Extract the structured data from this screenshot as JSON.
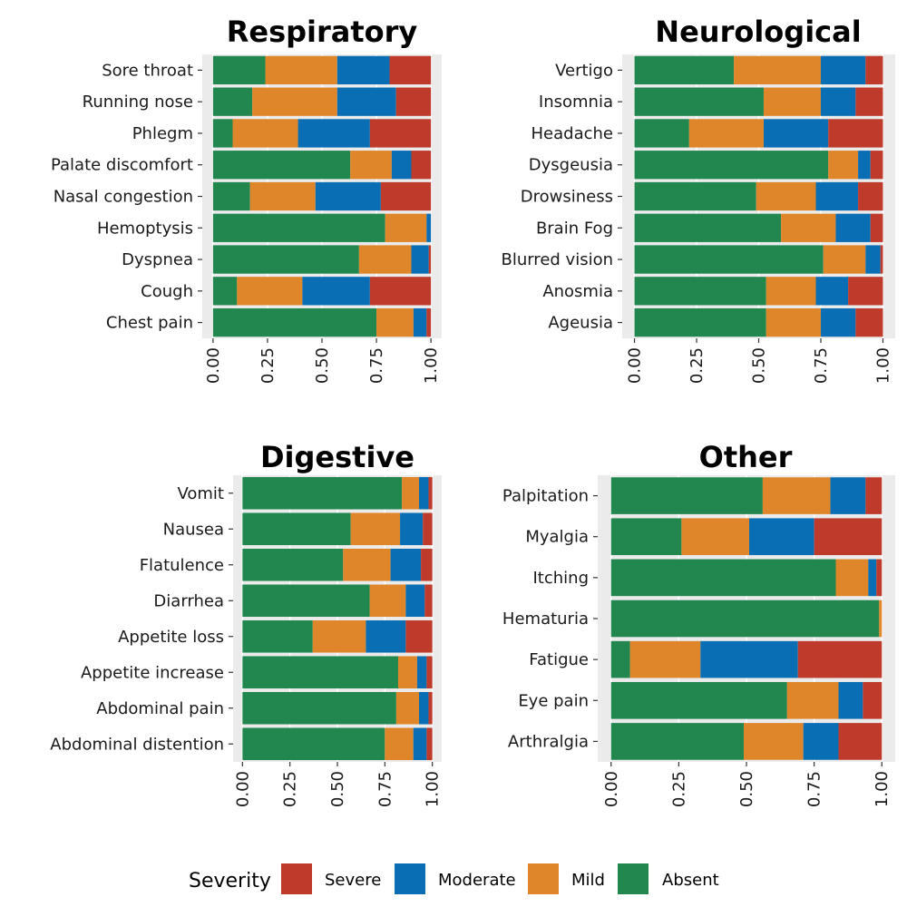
{
  "colors": {
    "Severe": "#BE3B2C",
    "Moderate": "#0A6EB4",
    "Mild": "#E0862A",
    "Absent": "#21874F",
    "panel_bg": "#EBEBEB"
  },
  "legend": {
    "title": "Severity",
    "entries": [
      "Severe",
      "Moderate",
      "Mild",
      "Absent"
    ]
  },
  "chart_data": [
    {
      "type": "bar",
      "orientation": "horizontal",
      "stacked": true,
      "title": "Respiratory",
      "xlim": [
        0,
        1
      ],
      "xticks": [
        "0.00",
        "0.25",
        "0.50",
        "0.75",
        "1.00"
      ],
      "categories": [
        "Sore throat",
        "Running nose",
        "Phlegm",
        "Palate discomfort",
        "Nasal congestion",
        "Hemoptysis",
        "Dyspnea",
        "Cough",
        "Chest pain"
      ],
      "series": [
        {
          "name": "Absent",
          "values": [
            0.24,
            0.18,
            0.09,
            0.63,
            0.17,
            0.79,
            0.67,
            0.11,
            0.75
          ]
        },
        {
          "name": "Mild",
          "values": [
            0.33,
            0.39,
            0.3,
            0.19,
            0.3,
            0.19,
            0.24,
            0.3,
            0.17
          ]
        },
        {
          "name": "Moderate",
          "values": [
            0.24,
            0.27,
            0.33,
            0.09,
            0.3,
            0.02,
            0.08,
            0.31,
            0.06
          ]
        },
        {
          "name": "Severe",
          "values": [
            0.19,
            0.16,
            0.28,
            0.09,
            0.23,
            0.0,
            0.01,
            0.28,
            0.02
          ]
        }
      ]
    },
    {
      "type": "bar",
      "orientation": "horizontal",
      "stacked": true,
      "title": "Neurological",
      "xlim": [
        0,
        1
      ],
      "xticks": [
        "0.00",
        "0.25",
        "0.50",
        "0.75",
        "1.00"
      ],
      "categories": [
        "Vertigo",
        "Insomnia",
        "Headache",
        "Dysgeusia",
        "Drowsiness",
        "Brain Fog",
        "Blurred vision",
        "Anosmia",
        "Ageusia"
      ],
      "series": [
        {
          "name": "Absent",
          "values": [
            0.4,
            0.52,
            0.22,
            0.78,
            0.49,
            0.59,
            0.76,
            0.53,
            0.53
          ]
        },
        {
          "name": "Mild",
          "values": [
            0.35,
            0.23,
            0.3,
            0.12,
            0.24,
            0.22,
            0.17,
            0.2,
            0.22
          ]
        },
        {
          "name": "Moderate",
          "values": [
            0.18,
            0.14,
            0.26,
            0.05,
            0.17,
            0.14,
            0.06,
            0.13,
            0.14
          ]
        },
        {
          "name": "Severe",
          "values": [
            0.07,
            0.11,
            0.22,
            0.05,
            0.1,
            0.05,
            0.01,
            0.14,
            0.11
          ]
        }
      ]
    },
    {
      "type": "bar",
      "orientation": "horizontal",
      "stacked": true,
      "title": "Digestive",
      "xlim": [
        0,
        1
      ],
      "xticks": [
        "0.00",
        "0.25",
        "0.50",
        "0.75",
        "1.00"
      ],
      "categories": [
        "Vomit",
        "Nausea",
        "Flatulence",
        "Diarrhea",
        "Appetite loss",
        "Appetite increase",
        "Abdominal pain",
        "Abdominal distention"
      ],
      "series": [
        {
          "name": "Absent",
          "values": [
            0.84,
            0.57,
            0.53,
            0.67,
            0.37,
            0.82,
            0.81,
            0.75
          ]
        },
        {
          "name": "Mild",
          "values": [
            0.09,
            0.26,
            0.25,
            0.19,
            0.28,
            0.1,
            0.12,
            0.15
          ]
        },
        {
          "name": "Moderate",
          "values": [
            0.05,
            0.12,
            0.16,
            0.1,
            0.21,
            0.05,
            0.05,
            0.07
          ]
        },
        {
          "name": "Severe",
          "values": [
            0.02,
            0.05,
            0.06,
            0.04,
            0.14,
            0.03,
            0.02,
            0.03
          ]
        }
      ]
    },
    {
      "type": "bar",
      "orientation": "horizontal",
      "stacked": true,
      "title": "Other",
      "xlim": [
        0,
        1
      ],
      "xticks": [
        "0.00",
        "0.25",
        "0.50",
        "0.75",
        "1.00"
      ],
      "categories": [
        "Palpitation",
        "Myalgia",
        "Itching",
        "Hematuria",
        "Fatigue",
        "Eye pain",
        "Arthralgia"
      ],
      "series": [
        {
          "name": "Absent",
          "values": [
            0.56,
            0.26,
            0.83,
            0.99,
            0.07,
            0.65,
            0.49
          ]
        },
        {
          "name": "Mild",
          "values": [
            0.25,
            0.25,
            0.12,
            0.01,
            0.26,
            0.19,
            0.22
          ]
        },
        {
          "name": "Moderate",
          "values": [
            0.13,
            0.24,
            0.03,
            0.0,
            0.36,
            0.09,
            0.13
          ]
        },
        {
          "name": "Severe",
          "values": [
            0.06,
            0.25,
            0.02,
            0.0,
            0.31,
            0.07,
            0.16
          ]
        }
      ]
    }
  ]
}
